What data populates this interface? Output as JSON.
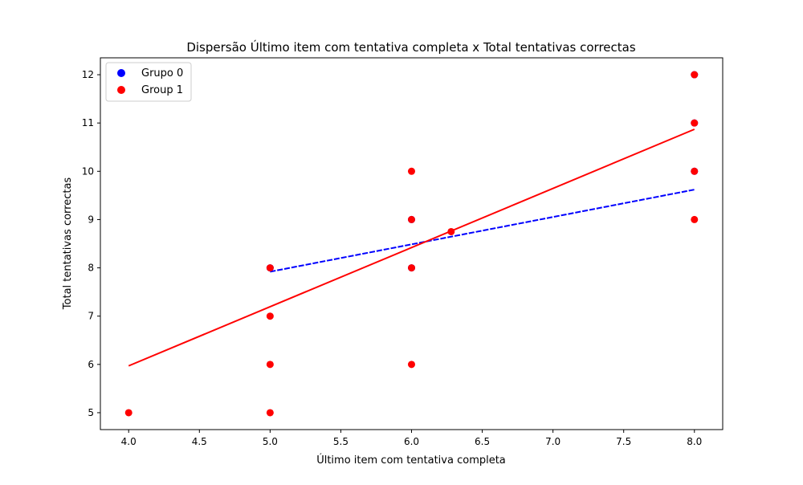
{
  "chart_data": {
    "type": "scatter",
    "title": "Dispersão Último item com tentativa completa x Total tentativas correctas",
    "xlabel": "Último item com tentativa completa",
    "ylabel": "Total tentativas correctas",
    "xlim": [
      3.8,
      8.2
    ],
    "ylim": [
      4.65,
      12.35
    ],
    "xticks": [
      4.0,
      4.5,
      5.0,
      5.5,
      6.0,
      6.5,
      7.0,
      7.5,
      8.0
    ],
    "xtick_labels": [
      "4.0",
      "4.5",
      "5.0",
      "5.5",
      "6.0",
      "6.5",
      "7.0",
      "7.5",
      "8.0"
    ],
    "yticks": [
      5,
      6,
      7,
      8,
      9,
      10,
      11,
      12
    ],
    "ytick_labels": [
      "5",
      "6",
      "7",
      "8",
      "9",
      "10",
      "11",
      "12"
    ],
    "grid": false,
    "legend_position": "top-left",
    "series": [
      {
        "name": "Grupo 0",
        "color": "#0000ff",
        "points": [
          {
            "x": 5,
            "y": 8
          },
          {
            "x": 6,
            "y": 9
          },
          {
            "x": 6,
            "y": 8
          },
          {
            "x": 8,
            "y": 10
          },
          {
            "x": 8,
            "y": 11
          },
          {
            "x": 8,
            "y": 12
          }
        ],
        "trendline": {
          "x": [
            5,
            8
          ],
          "y": [
            7.92,
            9.62
          ]
        }
      },
      {
        "name": "Group 1",
        "color": "#ff0000",
        "points": [
          {
            "x": 4,
            "y": 5
          },
          {
            "x": 5,
            "y": 5
          },
          {
            "x": 5,
            "y": 6
          },
          {
            "x": 5,
            "y": 7
          },
          {
            "x": 5,
            "y": 8
          },
          {
            "x": 6,
            "y": 6
          },
          {
            "x": 6,
            "y": 8
          },
          {
            "x": 6,
            "y": 9
          },
          {
            "x": 6,
            "y": 10
          },
          {
            "x": 6.28,
            "y": 8.75
          },
          {
            "x": 8,
            "y": 9
          },
          {
            "x": 8,
            "y": 10
          },
          {
            "x": 8,
            "y": 11
          },
          {
            "x": 8,
            "y": 12
          }
        ],
        "trendline": {
          "x": [
            4,
            8
          ],
          "y": [
            5.97,
            10.87
          ]
        }
      }
    ]
  }
}
